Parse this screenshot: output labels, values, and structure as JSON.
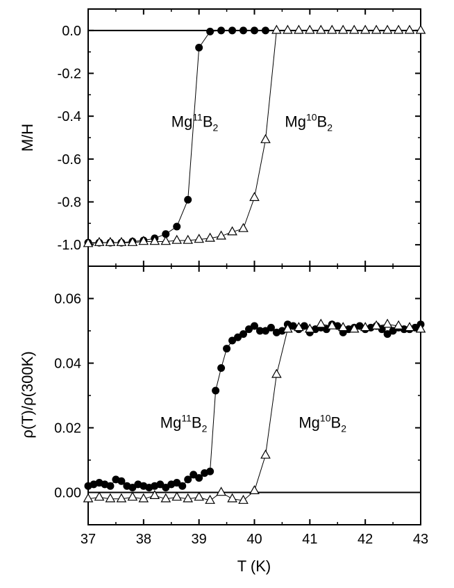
{
  "chart_data": {
    "type": "scatter",
    "x_axis": {
      "label": "T (K)",
      "range": [
        37,
        43
      ],
      "ticks": [
        37,
        38,
        39,
        40,
        41,
        42,
        43
      ]
    },
    "panels": [
      {
        "id": "magnetization",
        "ylabel": "M/H",
        "ylim": [
          -1.1,
          0.1
        ],
        "yticks": [
          "0.0",
          "-0.2",
          "-0.4",
          "-0.6",
          "-0.8",
          "-1.0"
        ],
        "yticks_values": [
          0.0,
          -0.2,
          -0.4,
          -0.6,
          -0.8,
          -1.0
        ],
        "baseline": 0.0,
        "annotations": [
          {
            "base": "Mg",
            "sup": "11",
            "elem": "B",
            "sub": "2",
            "x": 38.5,
            "y": -0.45
          },
          {
            "base": "Mg",
            "sup": "10",
            "elem": "B",
            "sub": "2",
            "x": 40.55,
            "y": -0.45
          }
        ],
        "series": [
          {
            "name": "Mg11B2",
            "marker": "filled-circle",
            "x": [
              37.0,
              37.2,
              37.4,
              37.6,
              37.8,
              38.0,
              38.2,
              38.4,
              38.6,
              38.8,
              39.0,
              39.2,
              39.4,
              39.6,
              39.8,
              40.0,
              40.2
            ],
            "y": [
              -0.99,
              -0.99,
              -0.99,
              -0.99,
              -0.985,
              -0.98,
              -0.97,
              -0.95,
              -0.915,
              -0.79,
              -0.08,
              -0.005,
              0.0,
              0.0,
              0.0,
              0.0,
              0.0
            ]
          },
          {
            "name": "Mg10B2",
            "marker": "open-triangle",
            "x": [
              37.0,
              37.2,
              37.4,
              37.6,
              37.8,
              38.0,
              38.2,
              38.4,
              38.6,
              38.8,
              39.0,
              39.2,
              39.4,
              39.6,
              39.8,
              40.0,
              40.2,
              40.4,
              40.6,
              40.8,
              41.0,
              41.2,
              41.4,
              41.6,
              41.8,
              42.0,
              42.2,
              42.4,
              42.6,
              42.8,
              43.0
            ],
            "y": [
              -0.995,
              -0.99,
              -0.99,
              -0.99,
              -0.99,
              -0.985,
              -0.985,
              -0.985,
              -0.98,
              -0.98,
              -0.975,
              -0.97,
              -0.96,
              -0.94,
              -0.925,
              -0.78,
              -0.51,
              0.0,
              0.0,
              0.0,
              0.0,
              0.0,
              0.0,
              0.0,
              0.0,
              0.0,
              0.0,
              0.0,
              0.0,
              0.0,
              0.0
            ]
          }
        ]
      },
      {
        "id": "resistivity",
        "ylabel": "ρ(T)/ρ(300K)",
        "ylim": [
          -0.01,
          0.07
        ],
        "yticks": [
          "0.06",
          "0.04",
          "0.02",
          "0.00"
        ],
        "yticks_values": [
          0.06,
          0.04,
          0.02,
          0.0
        ],
        "baseline": 0.0,
        "annotations": [
          {
            "base": "Mg",
            "sup": "11",
            "elem": "B",
            "sub": "2",
            "x": 38.3,
            "y": 0.02
          },
          {
            "base": "Mg",
            "sup": "10",
            "elem": "B",
            "sub": "2",
            "x": 40.8,
            "y": 0.02
          }
        ],
        "series": [
          {
            "name": "Mg11B2",
            "marker": "filled-circle",
            "x": [
              37.0,
              37.1,
              37.2,
              37.3,
              37.4,
              37.5,
              37.6,
              37.7,
              37.8,
              37.9,
              38.0,
              38.1,
              38.2,
              38.3,
              38.4,
              38.5,
              38.6,
              38.7,
              38.8,
              38.9,
              39.0,
              39.1,
              39.2,
              39.3,
              39.4,
              39.5,
              39.6,
              39.7,
              39.8,
              39.9,
              40.0,
              40.1,
              40.2,
              40.3,
              40.4,
              40.5,
              40.6,
              40.7,
              40.8,
              40.9,
              41.0,
              41.1,
              41.2,
              41.3,
              41.4,
              41.5,
              41.6,
              41.7,
              41.8,
              41.9,
              42.0,
              42.1,
              42.2,
              42.3,
              42.4,
              42.5,
              42.6,
              42.7,
              42.8,
              42.9,
              43.0
            ],
            "y": [
              0.002,
              0.0025,
              0.003,
              0.0025,
              0.002,
              0.004,
              0.0035,
              0.002,
              0.0015,
              0.0025,
              0.002,
              0.0015,
              0.002,
              0.0025,
              0.0015,
              0.0025,
              0.003,
              0.002,
              0.004,
              0.0055,
              0.0045,
              0.006,
              0.0065,
              0.0315,
              0.0385,
              0.0445,
              0.047,
              0.048,
              0.049,
              0.0505,
              0.0515,
              0.05,
              0.05,
              0.051,
              0.0495,
              0.05,
              0.052,
              0.0515,
              0.0505,
              0.0515,
              0.0495,
              0.0505,
              0.051,
              0.0505,
              0.052,
              0.0515,
              0.0495,
              0.0505,
              0.051,
              0.0515,
              0.0505,
              0.051,
              0.0515,
              0.0505,
              0.049,
              0.05,
              0.051,
              0.0505,
              0.0505,
              0.051,
              0.052
            ]
          },
          {
            "name": "Mg10B2",
            "marker": "open-triangle",
            "x": [
              37.0,
              37.2,
              37.4,
              37.6,
              37.8,
              38.0,
              38.2,
              38.4,
              38.6,
              38.8,
              39.0,
              39.2,
              39.4,
              39.6,
              39.8,
              40.0,
              40.2,
              40.4,
              40.6,
              40.8,
              41.0,
              41.2,
              41.4,
              41.6,
              41.8,
              42.0,
              42.2,
              42.4,
              42.6,
              42.8,
              43.0
            ],
            "y": [
              -0.002,
              -0.0015,
              -0.002,
              -0.002,
              -0.0015,
              -0.002,
              -0.001,
              -0.002,
              -0.0015,
              -0.002,
              -0.0015,
              -0.0025,
              0.0,
              -0.002,
              -0.0025,
              0.0005,
              0.0115,
              0.0365,
              0.0505,
              0.051,
              0.0505,
              0.052,
              0.0515,
              0.051,
              0.0505,
              0.051,
              0.0515,
              0.052,
              0.0515,
              0.051,
              0.0505
            ]
          }
        ]
      }
    ]
  }
}
